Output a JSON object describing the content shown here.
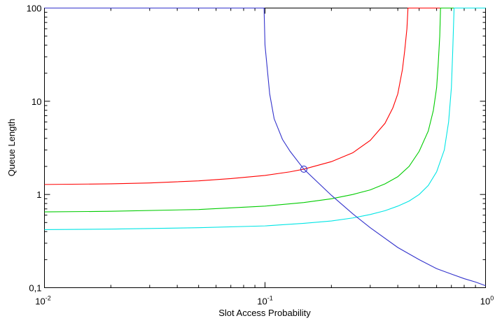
{
  "chart_data": {
    "type": "line",
    "title": "",
    "xlabel": "Slot Access Probability",
    "ylabel": "Queue Length",
    "xscale": "log",
    "yscale": "log",
    "xlim": [
      0.01,
      1
    ],
    "ylim": [
      0.1,
      100
    ],
    "grid": false,
    "x_ticks": [
      {
        "value": 0.01,
        "base": "10",
        "exp": "-2"
      },
      {
        "value": 0.1,
        "base": "10",
        "exp": "-1"
      },
      {
        "value": 1,
        "base": "10",
        "exp": "0"
      }
    ],
    "y_ticks": [
      {
        "value": 0.1,
        "label": "0,1"
      },
      {
        "value": 1,
        "label": "1"
      },
      {
        "value": 10,
        "label": "10"
      },
      {
        "value": 100,
        "label": "100"
      }
    ],
    "series": [
      {
        "color": "#ff0000",
        "points": [
          [
            0.01,
            1.28
          ],
          [
            0.02,
            1.3
          ],
          [
            0.03,
            1.33
          ],
          [
            0.05,
            1.4
          ],
          [
            0.07,
            1.48
          ],
          [
            0.1,
            1.6
          ],
          [
            0.13,
            1.75
          ],
          [
            0.15,
            1.87
          ],
          [
            0.2,
            2.25
          ],
          [
            0.25,
            2.8
          ],
          [
            0.3,
            3.8
          ],
          [
            0.35,
            5.8
          ],
          [
            0.38,
            8.5
          ],
          [
            0.4,
            12
          ],
          [
            0.42,
            22
          ],
          [
            0.43,
            35
          ],
          [
            0.44,
            60
          ],
          [
            0.445,
            100
          ],
          [
            1,
            100
          ]
        ]
      },
      {
        "color": "#00cc00",
        "points": [
          [
            0.01,
            0.65
          ],
          [
            0.02,
            0.66
          ],
          [
            0.05,
            0.69
          ],
          [
            0.1,
            0.75
          ],
          [
            0.15,
            0.82
          ],
          [
            0.2,
            0.9
          ],
          [
            0.25,
            1.0
          ],
          [
            0.3,
            1.12
          ],
          [
            0.35,
            1.3
          ],
          [
            0.4,
            1.55
          ],
          [
            0.45,
            2.0
          ],
          [
            0.5,
            2.9
          ],
          [
            0.55,
            4.8
          ],
          [
            0.58,
            8.0
          ],
          [
            0.6,
            14
          ],
          [
            0.61,
            25
          ],
          [
            0.62,
            50
          ],
          [
            0.625,
            100
          ],
          [
            1,
            100
          ]
        ]
      },
      {
        "color": "#00e5e5",
        "points": [
          [
            0.01,
            0.42
          ],
          [
            0.02,
            0.425
          ],
          [
            0.05,
            0.44
          ],
          [
            0.1,
            0.46
          ],
          [
            0.15,
            0.49
          ],
          [
            0.2,
            0.52
          ],
          [
            0.25,
            0.56
          ],
          [
            0.3,
            0.61
          ],
          [
            0.35,
            0.67
          ],
          [
            0.4,
            0.75
          ],
          [
            0.45,
            0.85
          ],
          [
            0.5,
            1.0
          ],
          [
            0.55,
            1.25
          ],
          [
            0.6,
            1.75
          ],
          [
            0.65,
            3.0
          ],
          [
            0.68,
            6.0
          ],
          [
            0.7,
            14
          ],
          [
            0.71,
            35
          ],
          [
            0.72,
            100
          ],
          [
            1,
            100
          ]
        ]
      },
      {
        "color": "#3333cc",
        "points": [
          [
            0.01,
            100
          ],
          [
            0.099,
            100
          ],
          [
            0.1,
            40
          ],
          [
            0.105,
            12
          ],
          [
            0.11,
            6.5
          ],
          [
            0.12,
            3.9
          ],
          [
            0.13,
            2.9
          ],
          [
            0.15,
            1.87
          ],
          [
            0.2,
            0.98
          ],
          [
            0.25,
            0.62
          ],
          [
            0.3,
            0.44
          ],
          [
            0.4,
            0.27
          ],
          [
            0.5,
            0.2
          ],
          [
            0.6,
            0.16
          ],
          [
            0.7,
            0.14
          ],
          [
            0.8,
            0.125
          ],
          [
            0.9,
            0.115
          ],
          [
            1,
            0.105
          ]
        ]
      }
    ],
    "annotations": [
      {
        "type": "circle-marker",
        "x": 0.15,
        "y": 1.87,
        "color": "#3333cc"
      }
    ]
  }
}
